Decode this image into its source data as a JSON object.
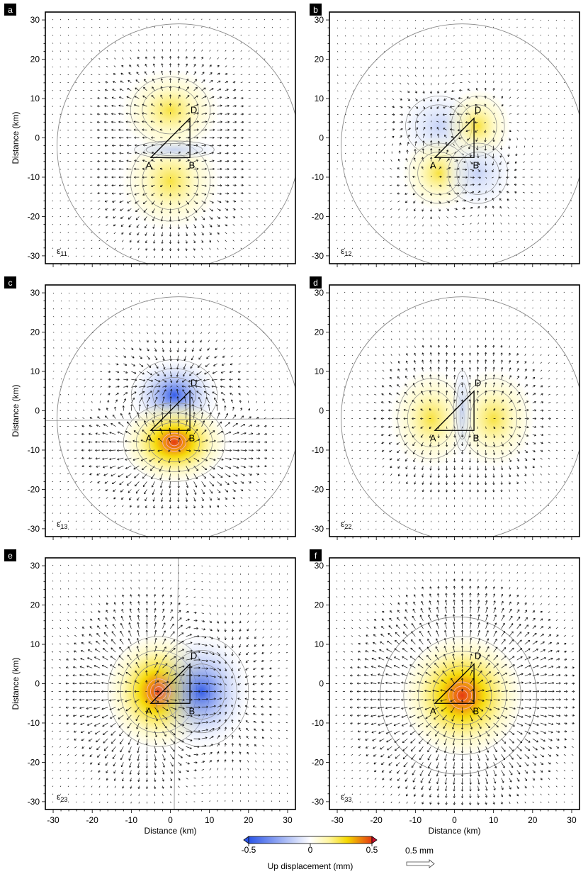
{
  "colors": {
    "negative": "#2b55e8",
    "neutral": "#ffffff",
    "low_positive": "#fff6a0",
    "positive": "#f5d800",
    "strong_positive": "#e53a12",
    "max_positive": "#c8102e",
    "contour": "#888888",
    "arrow": "#111111",
    "outline": "#000000"
  },
  "chart_data": {
    "type": "heatmap",
    "description_panels": 6,
    "x_range": [
      -32,
      32
    ],
    "y_range": [
      -32,
      32
    ],
    "x_ticks": [
      -30,
      -20,
      -10,
      0,
      10,
      20,
      30
    ],
    "y_ticks": [
      30,
      20,
      10,
      0,
      -10,
      -20,
      -30
    ],
    "xlabel": "Distance (km)",
    "ylabel": "Distance (km)",
    "fault_outline": {
      "vertices": [
        [
          -5,
          -5
        ],
        [
          5,
          -5
        ],
        [
          5,
          5
        ]
      ],
      "labels": [
        {
          "text": "A",
          "x": -5.5,
          "y": -7
        },
        {
          "text": "B",
          "x": 5.5,
          "y": -7
        },
        {
          "text": "D",
          "x": 6,
          "y": 7
        }
      ]
    },
    "panels": [
      {
        "letter": "a",
        "component_symbol": "ε",
        "component_index": "11",
        "sources": [
          {
            "x": 0,
            "y": 7,
            "sx": 6,
            "sy": 5,
            "amp": 0.22
          },
          {
            "x": 0,
            "y": -11,
            "sx": 6,
            "sy": 6,
            "amp": 0.22
          },
          {
            "x": 1,
            "y": -3,
            "sx": 6,
            "sy": 1.3,
            "amp": -0.05
          }
        ]
      },
      {
        "letter": "b",
        "component_symbol": "ε",
        "component_index": "12",
        "sources": [
          {
            "x": -4,
            "y": 3,
            "sx": 5,
            "sy": 4.5,
            "amp": -0.2
          },
          {
            "x": 6,
            "y": 3,
            "sx": 4,
            "sy": 4.5,
            "amp": 0.22
          },
          {
            "x": -4,
            "y": -9,
            "sx": 4.5,
            "sy": 4.5,
            "amp": 0.22
          },
          {
            "x": 6,
            "y": -9,
            "sx": 4.5,
            "sy": 4.5,
            "amp": -0.2
          }
        ]
      },
      {
        "letter": "c",
        "component_symbol": "ε",
        "component_index": "13",
        "sources": [
          {
            "x": 1,
            "y": 4,
            "sx": 5.5,
            "sy": 4.5,
            "amp": -0.45
          },
          {
            "x": 1,
            "y": -8,
            "sx": 6.5,
            "sy": 5,
            "amp": 0.48
          }
        ]
      },
      {
        "letter": "d",
        "component_symbol": "ε",
        "component_index": "22",
        "sources": [
          {
            "x": -6,
            "y": -2,
            "sx": 5,
            "sy": 6,
            "amp": 0.2
          },
          {
            "x": 10,
            "y": -2,
            "sx": 5,
            "sy": 6,
            "amp": 0.2
          },
          {
            "x": 2,
            "y": 0,
            "sx": 1.3,
            "sy": 6,
            "amp": -0.05
          }
        ]
      },
      {
        "letter": "e",
        "component_symbol": "ε",
        "component_index": "23",
        "sources": [
          {
            "x": -3,
            "y": -2,
            "sx": 6.5,
            "sy": 7,
            "amp": 0.48
          },
          {
            "x": 8,
            "y": -2,
            "sx": 6,
            "sy": 7,
            "amp": -0.3
          }
        ]
      },
      {
        "letter": "f",
        "component_symbol": "ε",
        "component_index": "33",
        "sources": [
          {
            "x": 2,
            "y": -3,
            "sx": 7.5,
            "sy": 7.5,
            "amp": 0.5
          }
        ]
      }
    ],
    "colorbar": {
      "label": "Up displacement (mm)",
      "min": -0.5,
      "max": 0.5,
      "tick_labels": [
        "-0.5",
        "0",
        "0.5"
      ],
      "tick_values": [
        -0.5,
        0,
        0.5
      ]
    },
    "vector_scale": {
      "label": "0.5 mm",
      "magnitude_mm": 0.5
    }
  }
}
